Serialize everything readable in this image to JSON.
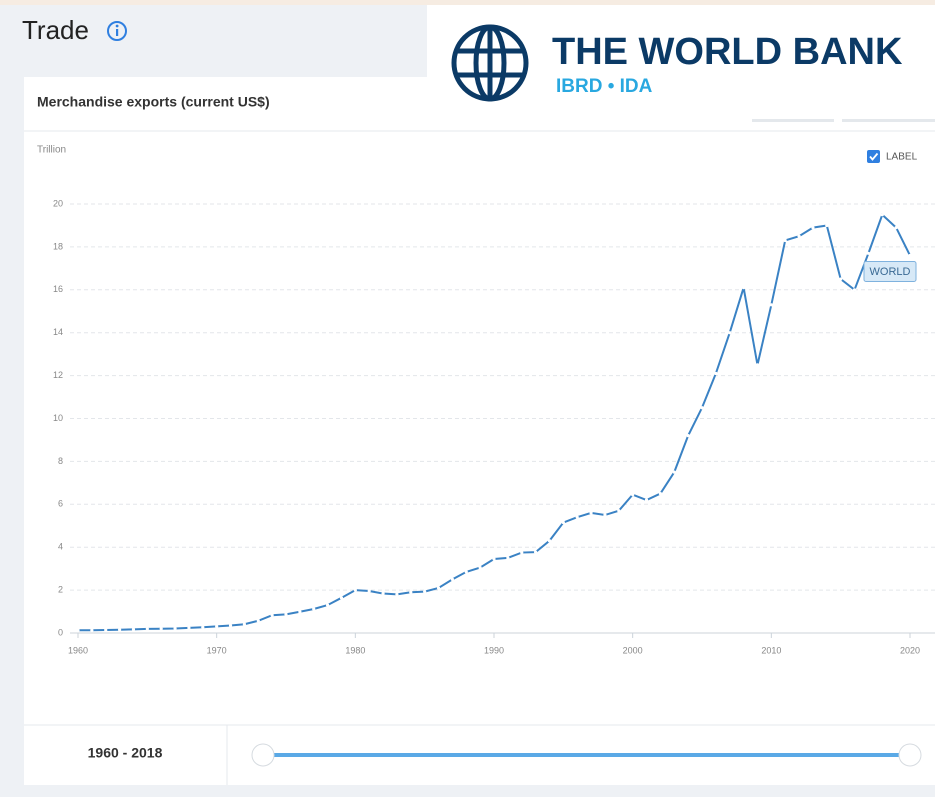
{
  "header": {
    "title": "Trade"
  },
  "logo": {
    "name": "THE WORLD BANK",
    "subtitle": "IBRD • IDA"
  },
  "chart_data": {
    "type": "line",
    "title": "Merchandise exports (current US$)",
    "y_label": "Trillion",
    "label_checkbox": "LABEL",
    "x": [
      1960,
      1961,
      1962,
      1963,
      1964,
      1965,
      1966,
      1967,
      1968,
      1969,
      1970,
      1971,
      1972,
      1973,
      1974,
      1975,
      1976,
      1977,
      1978,
      1979,
      1980,
      1981,
      1982,
      1983,
      1984,
      1985,
      1986,
      1987,
      1988,
      1989,
      1990,
      1991,
      1992,
      1993,
      1994,
      1995,
      1996,
      1997,
      1998,
      1999,
      2000,
      2001,
      2002,
      2003,
      2004,
      2005,
      2006,
      2007,
      2008,
      2009,
      2010,
      2011,
      2012,
      2013,
      2014,
      2015,
      2016,
      2017,
      2018,
      2019,
      2020
    ],
    "series": [
      {
        "name": "WORLD",
        "color": "#3a82c4",
        "values": [
          0.13,
          0.13,
          0.14,
          0.15,
          0.17,
          0.19,
          0.2,
          0.21,
          0.24,
          0.27,
          0.31,
          0.35,
          0.41,
          0.57,
          0.83,
          0.87,
          0.99,
          1.12,
          1.3,
          1.64,
          2.0,
          1.96,
          1.84,
          1.8,
          1.9,
          1.93,
          2.1,
          2.5,
          2.85,
          3.05,
          3.45,
          3.5,
          3.75,
          3.77,
          4.3,
          5.15,
          5.4,
          5.6,
          5.5,
          5.7,
          6.45,
          6.2,
          6.5,
          7.5,
          9.2,
          10.5,
          12.1,
          14.0,
          16.1,
          12.5,
          15.3,
          18.3,
          18.5,
          18.9,
          19.0,
          16.5,
          16.0,
          17.7,
          19.5,
          18.9,
          17.6
        ]
      }
    ],
    "xlim": [
      1960,
      2020
    ],
    "xticks": [
      1960,
      1970,
      1980,
      1990,
      2000,
      2010,
      2020
    ],
    "ylim": [
      0,
      20
    ],
    "yticks": [
      0,
      2,
      4,
      6,
      8,
      10,
      12,
      14,
      16,
      18,
      20
    ],
    "grid": true
  },
  "slider": {
    "range": "1960 - 2018"
  }
}
